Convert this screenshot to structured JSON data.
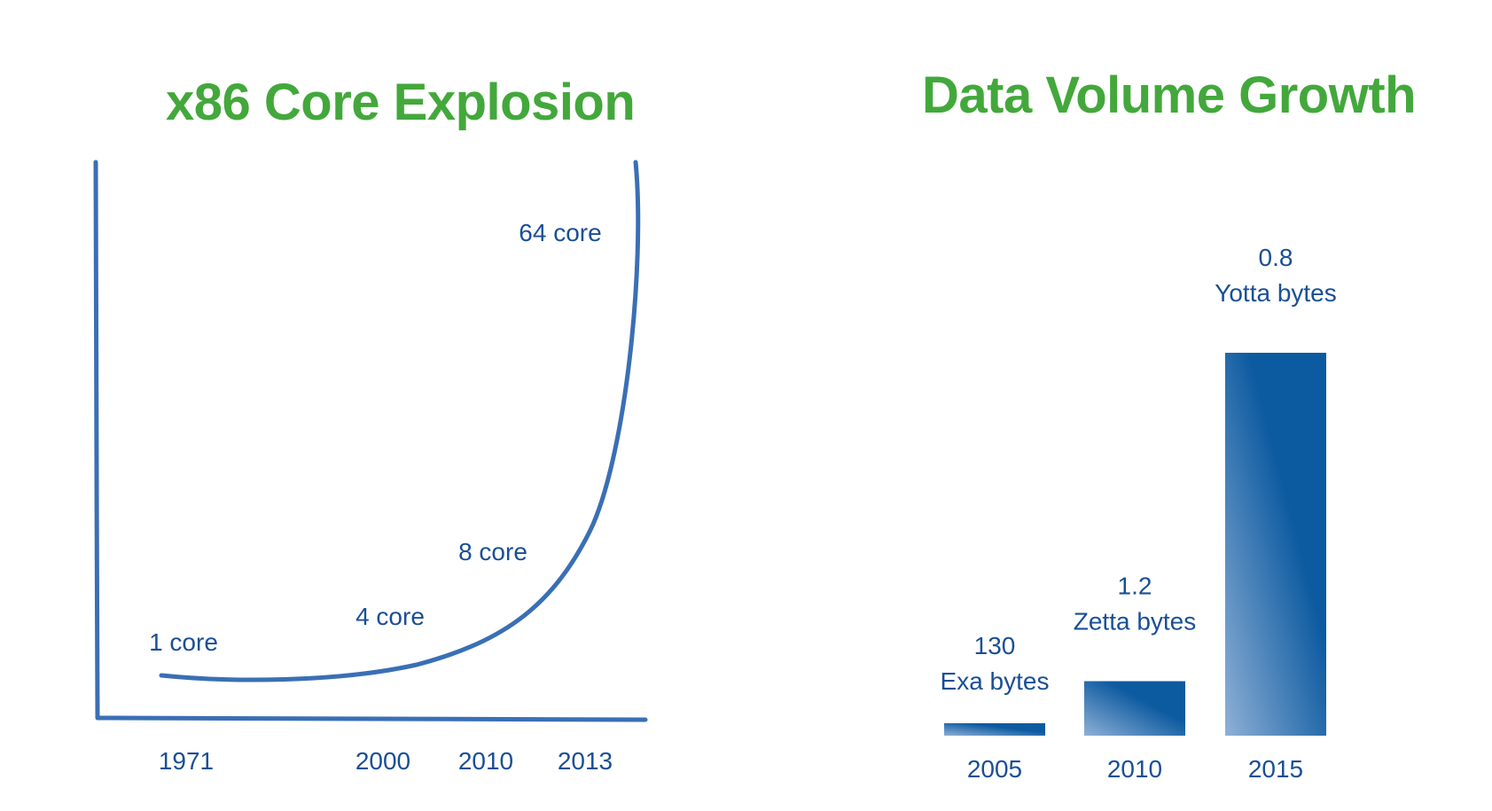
{
  "chart_data": [
    {
      "type": "line",
      "title": "x86 Core Explosion",
      "x_ticks": [
        "1971",
        "2000",
        "2010",
        "2013"
      ],
      "points": [
        {
          "x": "1971",
          "y": 1,
          "label": "1 core"
        },
        {
          "x": "2000",
          "y": 4,
          "label": "4 core"
        },
        {
          "x": "2010",
          "y": 8,
          "label": "8 core"
        },
        {
          "x": "2013",
          "y": 64,
          "label": "64 core"
        }
      ],
      "colors": {
        "line": "#3a6fb5",
        "axis": "#3a6fb5",
        "text": "#1a4f95",
        "title": "#43a83b"
      }
    },
    {
      "type": "bar",
      "title": "Data Volume Growth",
      "categories": [
        "2005",
        "2010",
        "2015"
      ],
      "values": [
        130,
        1200,
        800000
      ],
      "unit": "Exa bytes",
      "bar_labels": [
        {
          "value": "130",
          "unit": "Exa bytes"
        },
        {
          "value": "1.2",
          "unit": "Zetta bytes"
        },
        {
          "value": "0.8",
          "unit": "Yotta bytes"
        }
      ],
      "colors": {
        "bar_dark": "#0c5aa0",
        "bar_light": "#8fb0d6",
        "text": "#1a4f95",
        "title": "#43a83b"
      }
    }
  ]
}
